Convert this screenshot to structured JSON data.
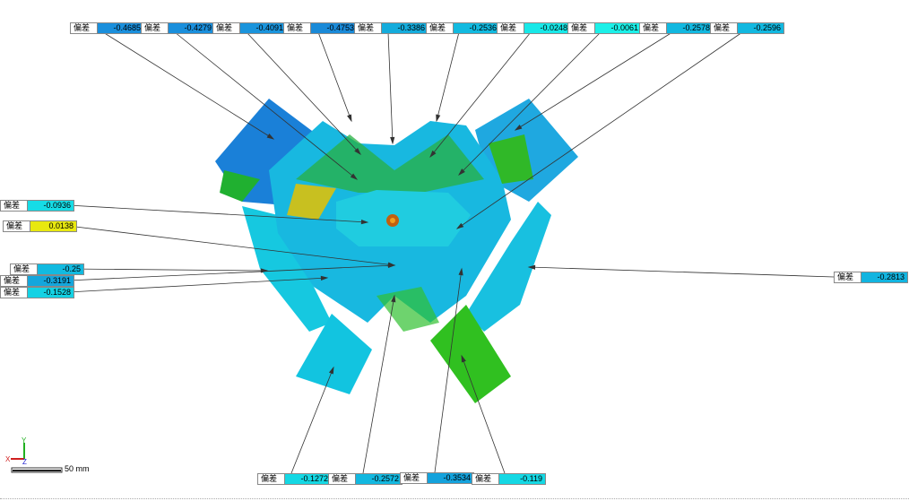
{
  "label_key": "偏差",
  "callouts": [
    {
      "value": "-0.4685",
      "color": "#1a8fdc"
    },
    {
      "value": "-0.4279",
      "color": "#1a8fdc"
    },
    {
      "value": "-0.4091",
      "color": "#1a94dc"
    },
    {
      "value": "-0.4753",
      "color": "#1a8ad8"
    },
    {
      "value": "-0.3386",
      "color": "#14acdc"
    },
    {
      "value": "-0.2536",
      "color": "#12bae0"
    },
    {
      "value": "-0.0248",
      "color": "#18e8e8"
    },
    {
      "value": "-0.0061",
      "color": "#1cf0e8"
    },
    {
      "value": "-0.2578",
      "color": "#12b8e0"
    },
    {
      "value": "-0.2596",
      "color": "#12b8e0"
    },
    {
      "value": "-0.0936",
      "color": "#16dce6"
    },
    {
      "value": "0.0138",
      "color": "#e8e810"
    },
    {
      "value": "-0.25",
      "color": "#12bae0"
    },
    {
      "value": "-0.3191",
      "color": "#14a6dc"
    },
    {
      "value": "-0.1528",
      "color": "#14d2e4"
    },
    {
      "value": "-0.2813",
      "color": "#12b4e0"
    },
    {
      "value": "-0.1272",
      "color": "#14d8e4"
    },
    {
      "value": "-0.2572",
      "color": "#12b8e0"
    },
    {
      "value": "-0.3534",
      "color": "#14a2dc"
    },
    {
      "value": "-0.119",
      "color": "#14d8e4"
    }
  ],
  "axes": {
    "x": "X",
    "y": "Y",
    "z": "Z"
  },
  "scale_bar": "50 mm"
}
